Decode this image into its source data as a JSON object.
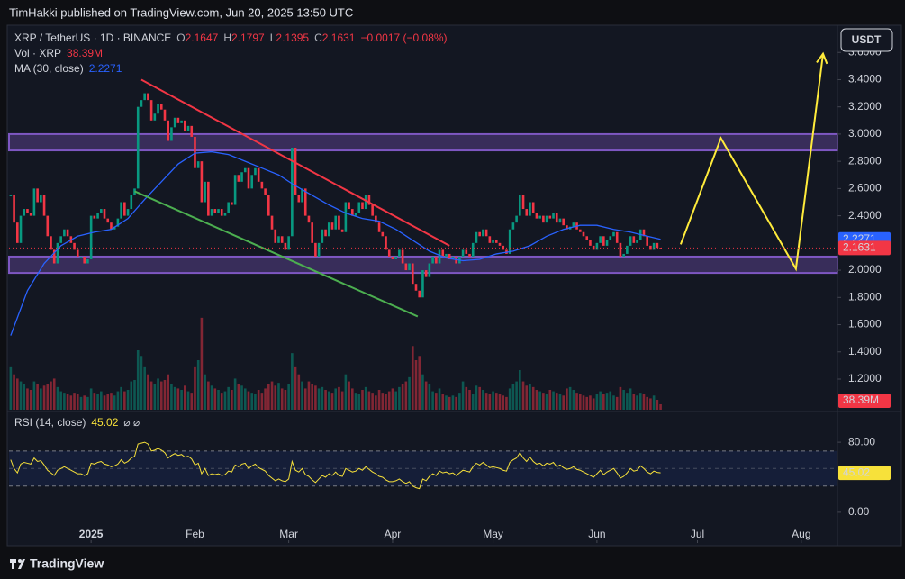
{
  "chart_data": {
    "type": "candlestick",
    "header": "TimHakki published on TradingView.com, Jun 20, 2025 13:50 UTC",
    "symbol": "XRP / TetherUS · 1D · BINANCE",
    "ohlc_labels": [
      "O",
      "H",
      "L",
      "C"
    ],
    "high": 2.1797,
    "low": 2.1395,
    "change": "−0.0017 (−0.08%)",
    "currency": "USDT",
    "brand": "TradingView",
    "closes": [
      2.55,
      2.35,
      2.2,
      2.4,
      2.45,
      2.42,
      2.4,
      2.6,
      2.5,
      2.55,
      2.4,
      2.25,
      2.15,
      2.05,
      2.2,
      2.25,
      2.3,
      2.25,
      2.2,
      2.15,
      2.1,
      2.1,
      2.05,
      2.08,
      2.4,
      2.38,
      2.42,
      2.45,
      2.38,
      2.35,
      2.3,
      2.32,
      2.38,
      2.5,
      2.4,
      2.45,
      2.55,
      2.6,
      3.2,
      3.25,
      3.3,
      3.25,
      3.1,
      3.15,
      3.22,
      3.18,
      3.1,
      2.95,
      3.05,
      3.12,
      3.08,
      3.1,
      3.02,
      3.06,
      2.98,
      2.75,
      2.8,
      2.5,
      2.65,
      2.4,
      2.45,
      2.42,
      2.45,
      2.4,
      2.42,
      2.5,
      2.48,
      2.7,
      2.65,
      2.72,
      2.75,
      2.6,
      2.7,
      2.75,
      2.65,
      2.6,
      2.55,
      2.4,
      2.3,
      2.2,
      2.25,
      2.2,
      2.15,
      2.25,
      2.9,
      2.55,
      2.5,
      2.6,
      2.4,
      2.35,
      2.2,
      2.1,
      2.2,
      2.3,
      2.25,
      2.35,
      2.3,
      2.4,
      2.3,
      2.28,
      2.5,
      2.45,
      2.4,
      2.42,
      2.5,
      2.45,
      2.55,
      2.48,
      2.4,
      2.35,
      2.28,
      2.25,
      2.15,
      2.1,
      2.08,
      2.1,
      2.15,
      2.05,
      2.0,
      2.05,
      1.9,
      1.85,
      1.8,
      2.0,
      1.95,
      2.05,
      2.1,
      2.05,
      2.15,
      2.1,
      2.12,
      2.08,
      2.1,
      2.05,
      2.1,
      2.15,
      2.12,
      2.1,
      2.2,
      2.28,
      2.25,
      2.3,
      2.25,
      2.2,
      2.22,
      2.2,
      2.18,
      2.15,
      2.12,
      2.3,
      2.35,
      2.4,
      2.55,
      2.45,
      2.4,
      2.5,
      2.42,
      2.38,
      2.4,
      2.35,
      2.4,
      2.38,
      2.42,
      2.35,
      2.38,
      2.33,
      2.3,
      2.32,
      2.35,
      2.3,
      2.28,
      2.25,
      2.22,
      2.18,
      2.15,
      2.2,
      2.25,
      2.18,
      2.22,
      2.25,
      2.28,
      2.2,
      2.1,
      2.12,
      2.18,
      2.25,
      2.2,
      2.22,
      2.3,
      2.25,
      2.18,
      2.15,
      2.2,
      2.1647,
      2.1631
    ],
    "xlim": [
      -0.5,
      246.8
    ],
    "xticks": [
      {
        "value": 24,
        "label": "2025"
      },
      {
        "value": 55,
        "label": "Feb"
      },
      {
        "value": 83,
        "label": "Mar"
      },
      {
        "value": 114,
        "label": "Apr"
      },
      {
        "value": 144,
        "label": "May"
      },
      {
        "value": 175,
        "label": "Jun"
      },
      {
        "value": 205,
        "label": "Jul"
      },
      {
        "value": 236,
        "label": "Aug"
      }
    ],
    "ylim": [
      0.975,
      3.8
    ],
    "yticks": [
      {
        "value": 1.2,
        "label": "1.2000"
      },
      {
        "value": 1.4,
        "label": "1.4000"
      },
      {
        "value": 1.6,
        "label": "1.6000"
      },
      {
        "value": 1.8,
        "label": "1.8000"
      },
      {
        "value": 2.0,
        "label": "2.0000"
      },
      {
        "value": 2.4,
        "label": "2.4000"
      },
      {
        "value": 2.6,
        "label": "2.6000"
      },
      {
        "value": 2.8,
        "label": "2.8000"
      },
      {
        "value": 3.0,
        "label": "3.0000"
      },
      {
        "value": 3.2,
        "label": "3.2000"
      },
      {
        "value": 3.4,
        "label": "3.4000"
      },
      {
        "value": 3.6,
        "label": "3.6000"
      }
    ],
    "up_color": "#089981",
    "down_color": "#f23645",
    "volume": {
      "label": "Vol · XRP",
      "last_label": "38.39M",
      "ylim": [
        0,
        700
      ],
      "values": [
        300,
        250,
        220,
        200,
        180,
        150,
        140,
        200,
        180,
        150,
        170,
        180,
        200,
        220,
        160,
        130,
        120,
        110,
        100,
        120,
        110,
        90,
        100,
        90,
        150,
        120,
        110,
        130,
        100,
        110,
        120,
        100,
        130,
        160,
        130,
        140,
        200,
        210,
        420,
        380,
        300,
        250,
        200,
        180,
        220,
        200,
        210,
        250,
        180,
        160,
        150,
        140,
        170,
        130,
        120,
        300,
        350,
        650,
        250,
        200,
        170,
        150,
        140,
        120,
        130,
        160,
        140,
        220,
        180,
        170,
        150,
        130,
        120,
        110,
        140,
        120,
        150,
        180,
        200,
        170,
        190,
        150,
        140,
        180,
        400,
        300,
        250,
        200,
        150,
        200,
        180,
        170,
        150,
        160,
        140,
        130,
        120,
        150,
        160,
        130,
        250,
        200,
        150,
        120,
        110,
        140,
        160,
        130,
        120,
        100,
        140,
        120,
        110,
        130,
        150,
        130,
        160,
        180,
        200,
        230,
        450,
        350,
        380,
        250,
        200,
        180,
        130,
        120,
        150,
        110,
        100,
        90,
        100,
        90,
        120,
        200,
        160,
        140,
        110,
        170,
        160,
        140,
        120,
        110,
        130,
        120,
        110,
        100,
        90,
        150,
        180,
        200,
        280,
        200,
        170,
        180,
        160,
        140,
        130,
        120,
        110,
        140,
        130,
        120,
        110,
        100,
        150,
        160,
        140,
        120,
        110,
        100,
        90,
        100,
        80,
        110,
        130,
        110,
        120,
        130,
        100,
        90,
        160,
        140,
        120,
        150,
        110,
        100,
        120,
        110,
        90,
        80,
        100,
        70,
        38.39
      ]
    },
    "ma": {
      "label": "MA (30, close)",
      "color": "#2962ff",
      "x": [
        0,
        5,
        10,
        15,
        20,
        25,
        30,
        35,
        40,
        45,
        50,
        55,
        60,
        65,
        70,
        75,
        80,
        85,
        90,
        95,
        100,
        105,
        110,
        115,
        120,
        125,
        130,
        135,
        140,
        145,
        150,
        155,
        160,
        165,
        170,
        175,
        180,
        185,
        190,
        194
      ],
      "values": [
        1.52,
        1.85,
        2.05,
        2.18,
        2.25,
        2.28,
        2.3,
        2.38,
        2.52,
        2.65,
        2.78,
        2.86,
        2.87,
        2.85,
        2.8,
        2.75,
        2.7,
        2.62,
        2.55,
        2.48,
        2.42,
        2.38,
        2.36,
        2.3,
        2.22,
        2.14,
        2.09,
        2.07,
        2.08,
        2.12,
        2.14,
        2.18,
        2.25,
        2.3,
        2.33,
        2.33,
        2.3,
        2.28,
        2.25,
        2.2271
      ]
    },
    "zones": [
      {
        "from": 2.88,
        "to": 3.0
      },
      {
        "from": 1.98,
        "to": 2.1
      }
    ],
    "zone_color": "#7e57c2",
    "drawings": [
      {
        "color": "#f23645",
        "x": [
          39,
          131
        ],
        "y": [
          3.4,
          2.18
        ]
      },
      {
        "color": "#4caf50",
        "x": [
          37,
          121.5
        ],
        "y": [
          2.58,
          1.66
        ]
      },
      {
        "color": "#ffeb3b",
        "x": [
          200,
          212,
          234.4,
          242.5
        ],
        "y": [
          2.19,
          2.97,
          2.01,
          3.59
        ]
      }
    ],
    "rsi": {
      "label": "RSI (14, close)",
      "extra": "⌀ ⌀",
      "color": "#f7e13a",
      "ylim": [
        -32,
        112
      ],
      "bands": [
        30,
        70
      ],
      "midline": 50,
      "yticks": [
        {
          "value": 0,
          "label": "0.00"
        },
        {
          "value": 80,
          "label": "80.00"
        }
      ],
      "values": [
        60,
        50,
        45,
        55,
        57,
        56,
        55,
        62,
        58,
        59,
        54,
        48,
        45,
        42,
        48,
        50,
        52,
        50,
        48,
        46,
        44,
        44,
        42,
        44,
        56,
        55,
        57,
        58,
        55,
        54,
        52,
        53,
        55,
        60,
        56,
        58,
        62,
        64,
        78,
        79,
        80,
        78,
        70,
        71,
        73,
        71,
        68,
        62,
        65,
        67,
        65,
        66,
        63,
        64,
        61,
        54,
        56,
        44,
        50,
        42,
        44,
        43,
        44,
        42,
        43,
        47,
        46,
        54,
        52,
        55,
        56,
        50,
        53,
        55,
        51,
        49,
        47,
        42,
        39,
        36,
        38,
        36,
        35,
        38,
        58,
        48,
        46,
        50,
        43,
        41,
        37,
        34,
        38,
        42,
        40,
        44,
        42,
        46,
        42,
        41,
        50,
        48,
        46,
        47,
        50,
        48,
        52,
        49,
        46,
        44,
        41,
        40,
        37,
        35,
        35,
        36,
        38,
        35,
        33,
        35,
        30,
        28,
        27,
        38,
        36,
        41,
        44,
        42,
        47,
        45,
        46,
        44,
        45,
        42,
        45,
        48,
        47,
        46,
        52,
        56,
        54,
        57,
        54,
        51,
        52,
        51,
        50,
        48,
        47,
        57,
        60,
        62,
        68,
        62,
        58,
        63,
        58,
        55,
        56,
        53,
        56,
        55,
        57,
        52,
        54,
        51,
        49,
        50,
        52,
        49,
        48,
        46,
        44,
        42,
        40,
        44,
        48,
        43,
        46,
        48,
        50,
        45,
        39,
        41,
        45,
        50,
        47,
        48,
        53,
        50,
        46,
        44,
        47,
        45.5,
        45.02
      ]
    }
  }
}
